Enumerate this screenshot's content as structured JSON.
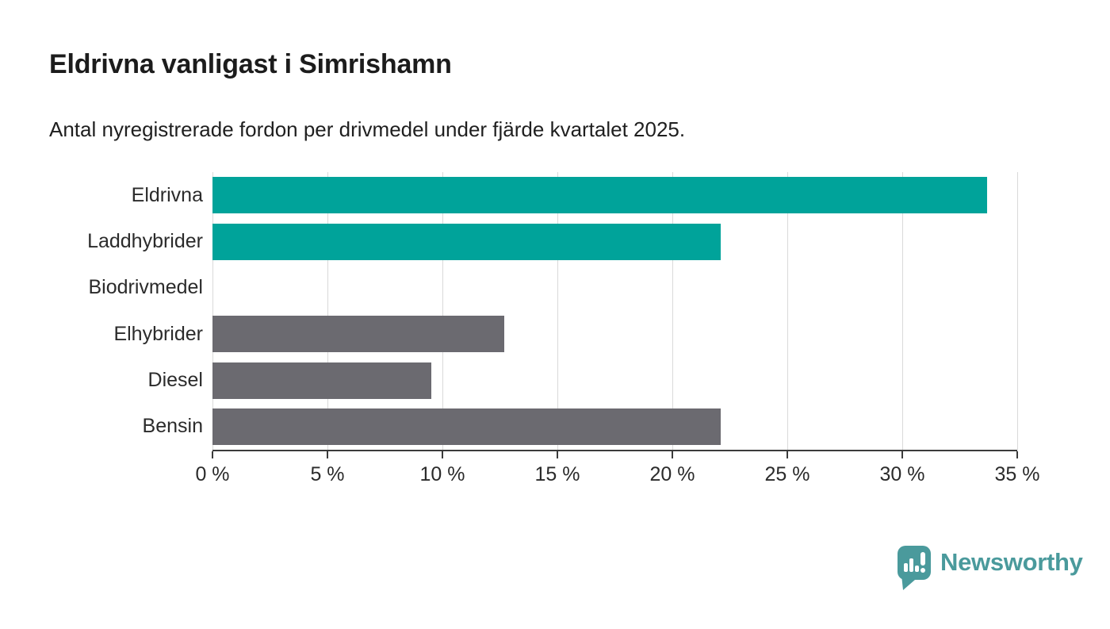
{
  "header": {
    "title": "Eldrivna vanligast i Simrishamn",
    "subtitle": "Antal nyregistrerade fordon per drivmedel under fjärde kvartalet 2025."
  },
  "chart_data": {
    "type": "bar",
    "orientation": "horizontal",
    "title": "Eldrivna vanligast i Simrishamn",
    "subtitle": "Antal nyregistrerade fordon per drivmedel under fjärde kvartalet 2025.",
    "categories": [
      "Eldrivna",
      "Laddhybrider",
      "Biodrivmedel",
      "Elhybrider",
      "Diesel",
      "Bensin"
    ],
    "values": [
      33.7,
      22.1,
      0,
      12.7,
      9.5,
      22.1
    ],
    "unit": "%",
    "xlim": [
      0,
      35
    ],
    "x_ticks": [
      0,
      5,
      10,
      15,
      20,
      25,
      30,
      35
    ],
    "x_tick_labels": [
      "0 %",
      "5 %",
      "10 %",
      "15 %",
      "20 %",
      "25 %",
      "30 %",
      "35 %"
    ],
    "bar_colors": [
      "#00a39a",
      "#00a39a",
      "#6b6a70",
      "#6b6a70",
      "#6b6a70",
      "#6b6a70"
    ],
    "grid": true,
    "legend": "none"
  },
  "colors": {
    "highlight_bar": "#00a39a",
    "default_bar": "#6b6a70",
    "gridline": "#d9d9d9",
    "axis": "#3b3b3b",
    "text": "#2b2b2b",
    "brand": "#4a9a9c"
  },
  "branding": {
    "logo_text": "Newsworthy",
    "logo_icon": "newsworthy-pin-barchart-icon"
  }
}
